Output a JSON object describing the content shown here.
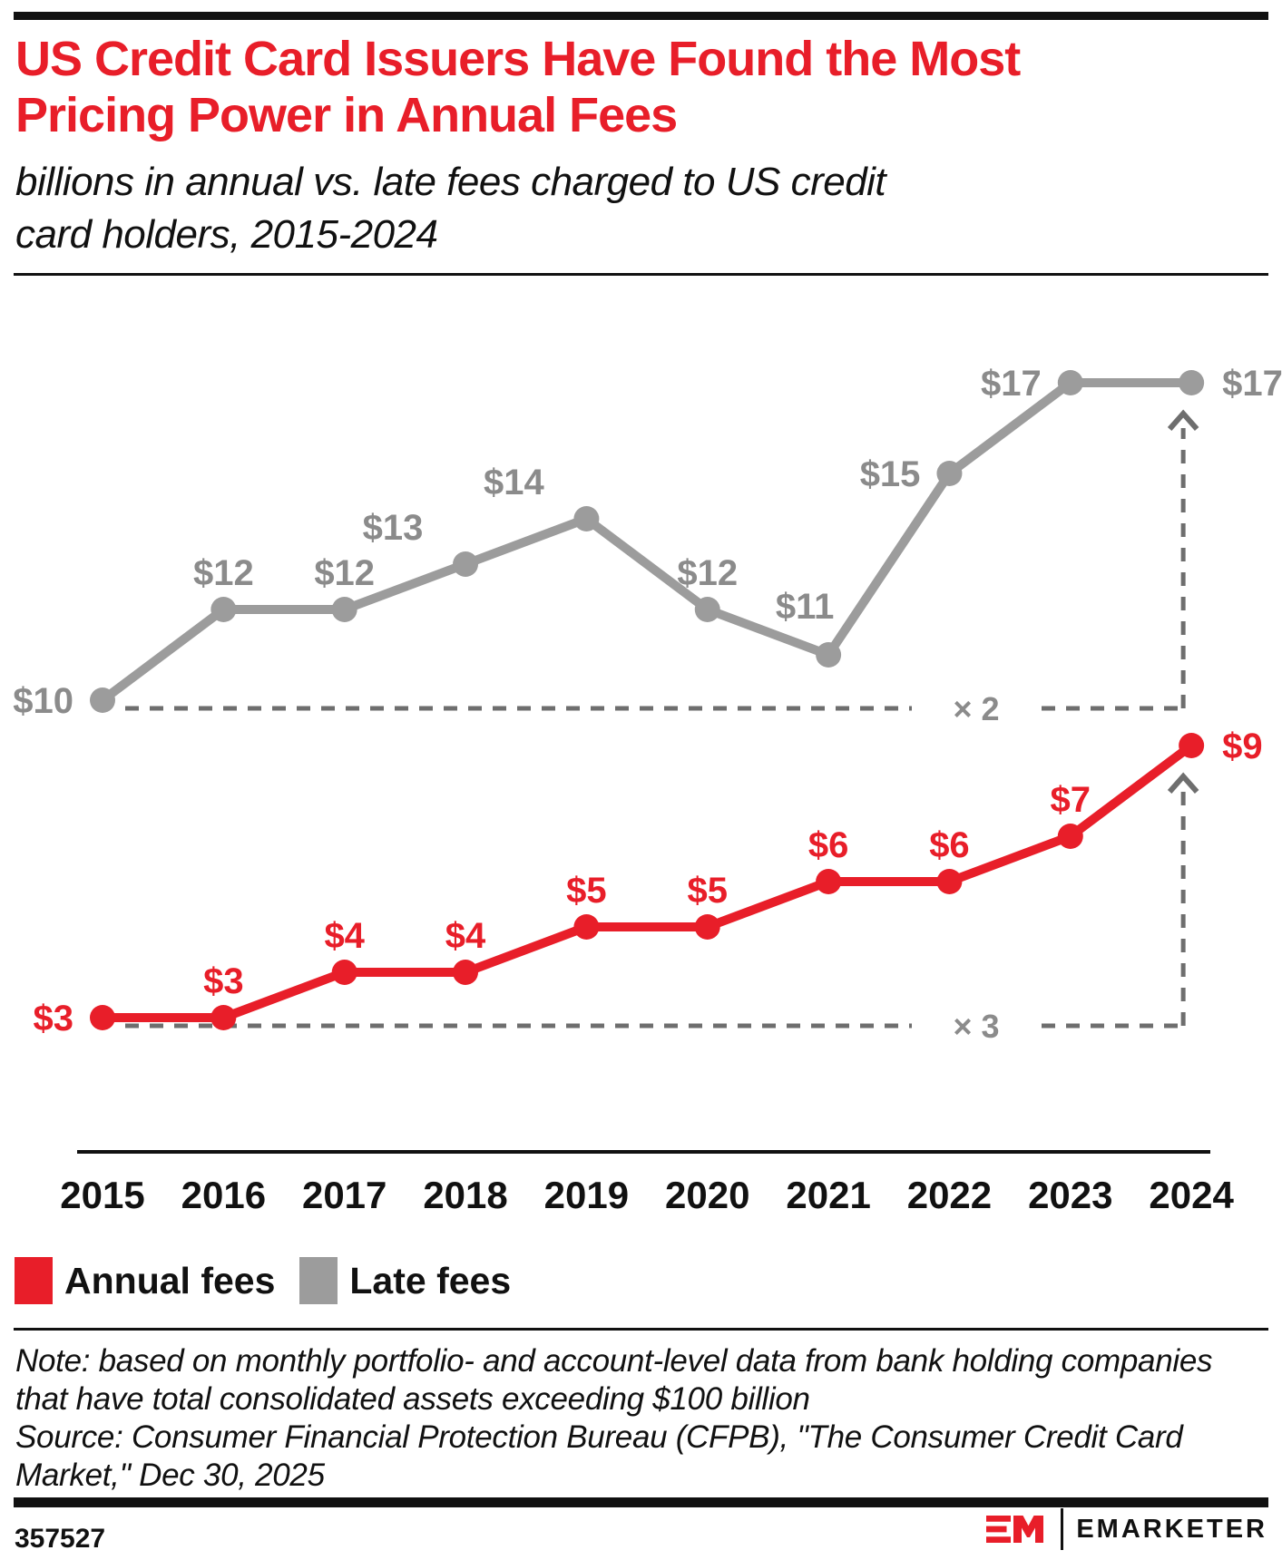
{
  "header": {
    "title_lines": [
      "US Credit Card Issuers Have Found the Most",
      "Pricing Power in Annual Fees"
    ],
    "subtitle_lines": [
      "billions in annual vs. late fees charged to US credit",
      "card holders, 2015-2024"
    ],
    "accent_color": "#e81e29"
  },
  "chart_data": {
    "type": "line",
    "categories": [
      "2015",
      "2016",
      "2017",
      "2018",
      "2019",
      "2020",
      "2021",
      "2022",
      "2023",
      "2024"
    ],
    "value_prefix": "$",
    "series": [
      {
        "name": "Annual fees",
        "color": "#e81e29",
        "values": [
          3,
          3,
          4,
          4,
          5,
          5,
          6,
          6,
          7,
          9
        ],
        "point_labels": [
          "$3",
          "$3",
          "$4",
          "$4",
          "$5",
          "$5",
          "$6",
          "$6",
          "$7",
          "$9"
        ],
        "label_placements": [
          "left",
          "above",
          "above",
          "above",
          "above",
          "above",
          "above",
          "above",
          "above",
          "right"
        ]
      },
      {
        "name": "Late fees",
        "color": "#9c9c9c",
        "values": [
          10,
          12,
          12,
          13,
          14,
          12,
          11,
          15,
          17,
          17
        ],
        "point_labels": [
          "$10",
          "$12",
          "$12",
          "$13",
          "$14",
          "$12",
          "$11",
          "$15",
          "$17",
          "$17"
        ],
        "label_placements": [
          "left",
          "above",
          "above",
          "above-left",
          "above-left",
          "above",
          "above-left-sm",
          "left",
          "left",
          "right"
        ]
      }
    ],
    "annotations": [
      {
        "label": "× 2",
        "series_index": 1,
        "from_index": 0,
        "to_index": 9
      },
      {
        "label": "× 3",
        "series_index": 0,
        "from_index": 0,
        "to_index": 9
      }
    ],
    "label_text_color_gray": "#8b8b8b",
    "dash_color": "#6e6e6e",
    "axis_color": "#111111",
    "xlabel": "",
    "ylabel": "",
    "grid": false,
    "legend_position": "bottom-left"
  },
  "legend": {
    "items": [
      {
        "label": "Annual fees",
        "color": "#e81e29"
      },
      {
        "label": "Late fees",
        "color": "#9c9c9c"
      }
    ]
  },
  "note": {
    "lines": [
      "Note: based on monthly portfolio- and account-level data from bank holding companies",
      "that have total consolidated assets exceeding $100 billion"
    ]
  },
  "source": {
    "lines": [
      "Source: Consumer Financial Protection Bureau (CFPB), \"The Consumer Credit Card",
      "Market,\" Dec 30, 2025"
    ]
  },
  "footer": {
    "chart_id": "357527",
    "brand": "EMARKETER"
  }
}
